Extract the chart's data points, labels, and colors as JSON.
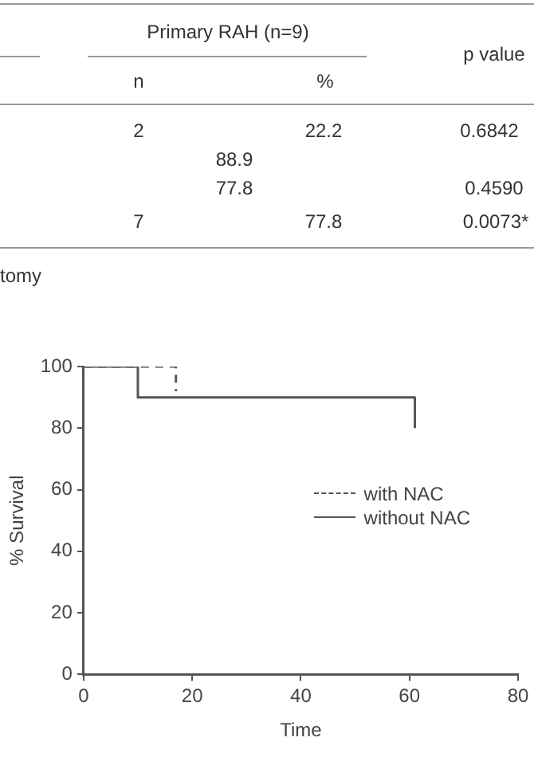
{
  "chart_data": [
    {
      "type": "other",
      "annotations": [
        "Primary RAH (n=9)",
        "p value",
        "n",
        "%",
        "2",
        "22.2",
        "0.6842",
        "88.9",
        "77.8",
        "0.4590",
        "7",
        "77.8",
        "0.0073*",
        "tomy"
      ]
    },
    {
      "type": "step",
      "xlabel": "Time",
      "ylabel": "% Survival",
      "xlim": [
        0,
        80
      ],
      "xticks": [
        0,
        20,
        40,
        60,
        80
      ],
      "ylim": [
        0,
        100
      ],
      "yticks": [
        0,
        20,
        40,
        60,
        80,
        100
      ],
      "grid": false,
      "legend": "right",
      "marker": "none",
      "series": [
        {
          "name": "with NAC",
          "color": "#555555",
          "line_style": "dashed",
          "x": [
            0,
            17
          ],
          "values": [
            100,
            92
          ]
        },
        {
          "name": "without NAC",
          "color": "#555555",
          "line_style": "solid",
          "x": [
            0,
            10,
            61
          ],
          "values": [
            100,
            90,
            80
          ]
        }
      ]
    }
  ]
}
